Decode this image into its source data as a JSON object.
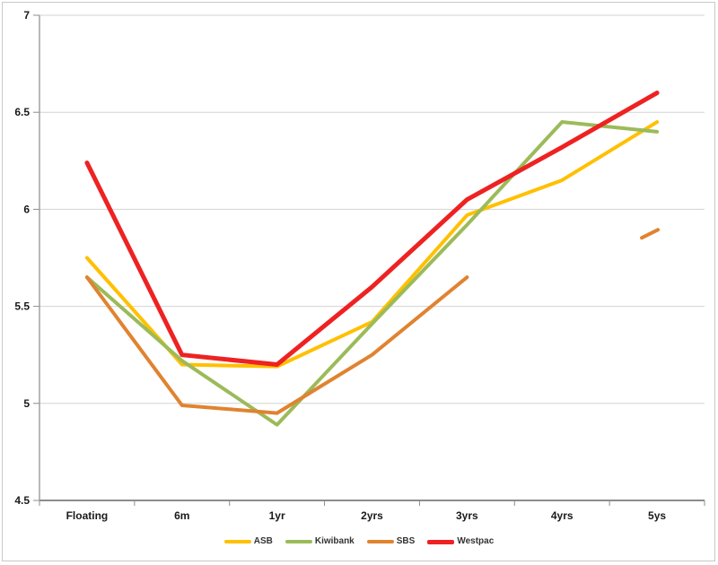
{
  "page": {
    "background": "#ffffff",
    "border_color": "#c9c9c9",
    "title": ""
  },
  "chart_data": {
    "type": "line",
    "title": "",
    "xlabel": "",
    "ylabel": "",
    "categories": [
      "Floating",
      "6m",
      "1yr",
      "2yrs",
      "3yrs",
      "4yrs",
      "5ys"
    ],
    "series": [
      {
        "name": "ASB",
        "color": "#FFC000",
        "line_width": 4,
        "values": [
          5.75,
          5.2,
          5.19,
          5.42,
          5.97,
          6.15,
          6.45
        ]
      },
      {
        "name": "Kiwibank",
        "color": "#9BBB59",
        "line_width": 4,
        "values": [
          5.65,
          5.22,
          4.89,
          5.41,
          5.92,
          6.45,
          6.4
        ]
      },
      {
        "name": "SBS",
        "color": "#E08330",
        "line_width": 4,
        "values": [
          5.65,
          4.99,
          4.95,
          5.25,
          5.65,
          null,
          5.89
        ]
      },
      {
        "name": "Westpac",
        "color": "#EE2222",
        "line_width": 5,
        "values": [
          6.24,
          5.25,
          5.2,
          5.6,
          6.05,
          6.32,
          6.6
        ]
      }
    ],
    "ylim": [
      4.5,
      7
    ],
    "ytick_step": 0.5,
    "ytick_labels": [
      "4.5",
      "5",
      "5.5",
      "6",
      "6.5",
      "7"
    ],
    "grid": "horizontal",
    "gridline_color": "#d3d3d3",
    "axis_color": "#8c8c8c",
    "legend_position": "bottom-center"
  }
}
